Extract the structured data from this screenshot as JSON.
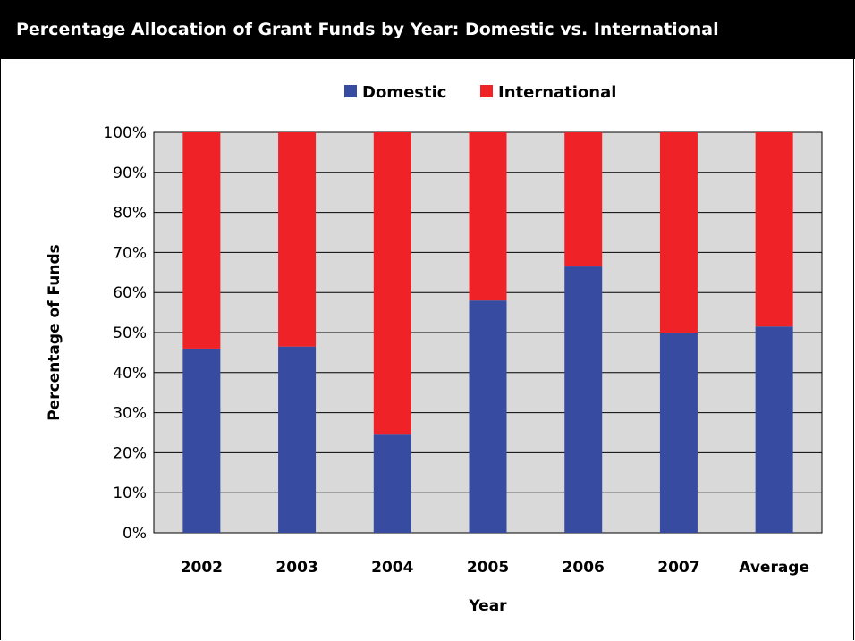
{
  "chart_data": {
    "type": "bar",
    "stacked": true,
    "title": "Percentage Allocation of Grant Funds by Year: Domestic vs. International",
    "xlabel": "Year",
    "ylabel": "Percentage of Funds",
    "ylim": [
      0,
      100
    ],
    "yticks": [
      "0%",
      "10%",
      "20%",
      "30%",
      "40%",
      "50%",
      "60%",
      "70%",
      "80%",
      "90%",
      "100%"
    ],
    "grid": true,
    "legend_position": "top",
    "categories": [
      "2002",
      "2003",
      "2004",
      "2005",
      "2006",
      "2007",
      "Average"
    ],
    "series": [
      {
        "name": "Domestic",
        "color": "#374ba0",
        "values": [
          46,
          46.5,
          24.5,
          58,
          66.5,
          50,
          51.5
        ]
      },
      {
        "name": "International",
        "color": "#ee2227",
        "values": [
          54,
          53.5,
          75.5,
          42,
          33.5,
          50,
          48.5
        ]
      }
    ],
    "plot_background": "#d9d9d9"
  }
}
